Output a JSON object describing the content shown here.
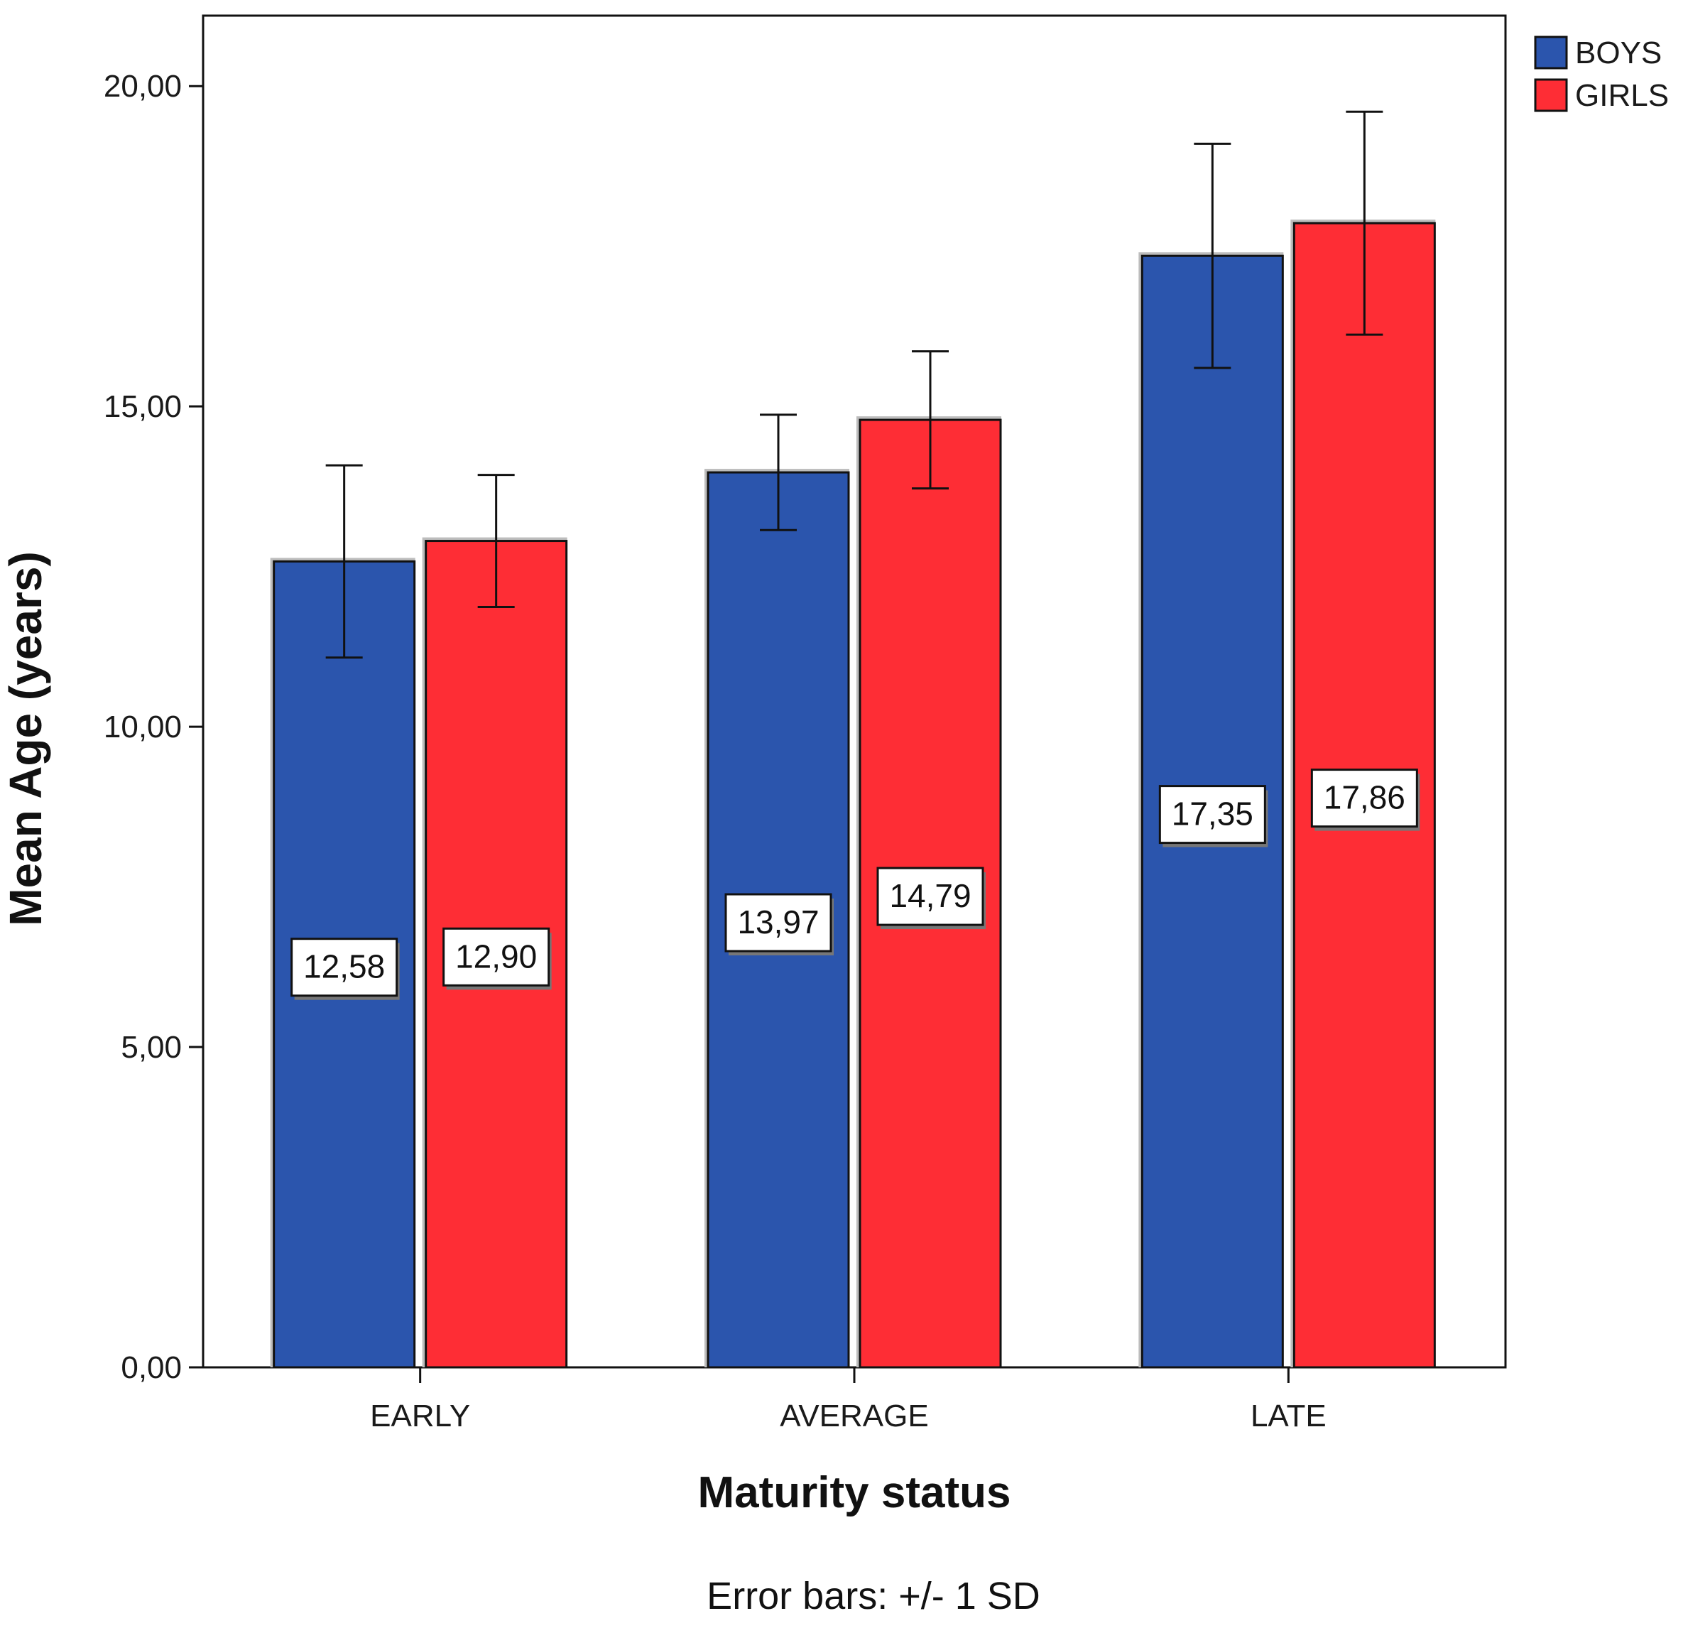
{
  "chart_data": {
    "type": "bar",
    "categories": [
      "EARLY",
      "AVERAGE",
      "LATE"
    ],
    "series": [
      {
        "name": "BOYS",
        "color": "#2b55ad",
        "values": [
          12.58,
          13.97,
          17.35
        ],
        "sd": [
          1.5,
          0.9,
          1.75
        ],
        "labels": [
          "12,58",
          "13,97",
          "17,35"
        ]
      },
      {
        "name": "GIRLS",
        "color": "#fe2d35",
        "values": [
          12.9,
          14.79,
          17.86
        ],
        "sd": [
          1.03,
          1.07,
          1.74
        ],
        "labels": [
          "12,90",
          "14,79",
          "17,86"
        ]
      }
    ],
    "xlabel": "Maturity status",
    "ylabel": "Mean Age (years)",
    "ylim": [
      0,
      21.1
    ],
    "yticks": [
      0,
      5,
      10,
      15,
      20
    ],
    "ytick_labels": [
      "0,00",
      "5,00",
      "10,00",
      "15,00",
      "20,00"
    ],
    "legend_position": "top-right",
    "grid": false,
    "footnote": "Error bars: +/- 1 SD"
  }
}
